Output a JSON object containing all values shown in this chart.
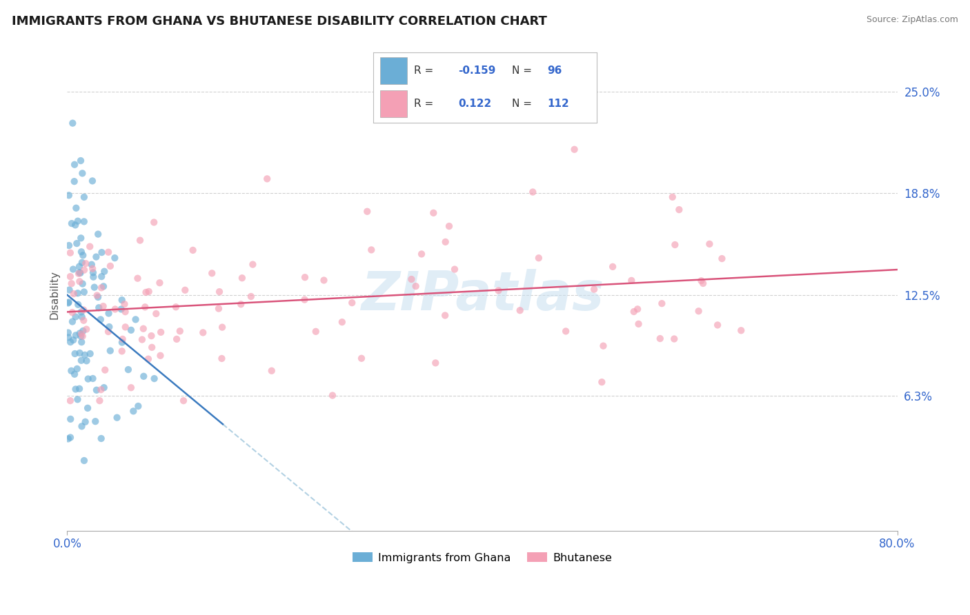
{
  "title": "IMMIGRANTS FROM GHANA VS BHUTANESE DISABILITY CORRELATION CHART",
  "source": "Source: ZipAtlas.com",
  "ylabel": "Disability",
  "xlim": [
    0.0,
    0.8
  ],
  "ylim": [
    -0.02,
    0.27
  ],
  "plot_ylim": [
    0.0,
    0.27
  ],
  "ytick_vals": [
    0.063,
    0.125,
    0.188,
    0.25
  ],
  "ytick_labels": [
    "6.3%",
    "12.5%",
    "18.8%",
    "25.0%"
  ],
  "xtick_vals": [
    0.0,
    0.8
  ],
  "xtick_labels": [
    "0.0%",
    "80.0%"
  ],
  "legend1_R": "-0.159",
  "legend1_N": "96",
  "legend2_R": "0.122",
  "legend2_N": "112",
  "color_blue": "#6baed6",
  "color_pink": "#f4a0b5",
  "line_blue": "#3a7abf",
  "line_pink": "#d9537a",
  "line_dash": "#aacce0",
  "watermark": "ZIPatlas",
  "background_color": "#ffffff",
  "grid_color": "#d0d0d0"
}
